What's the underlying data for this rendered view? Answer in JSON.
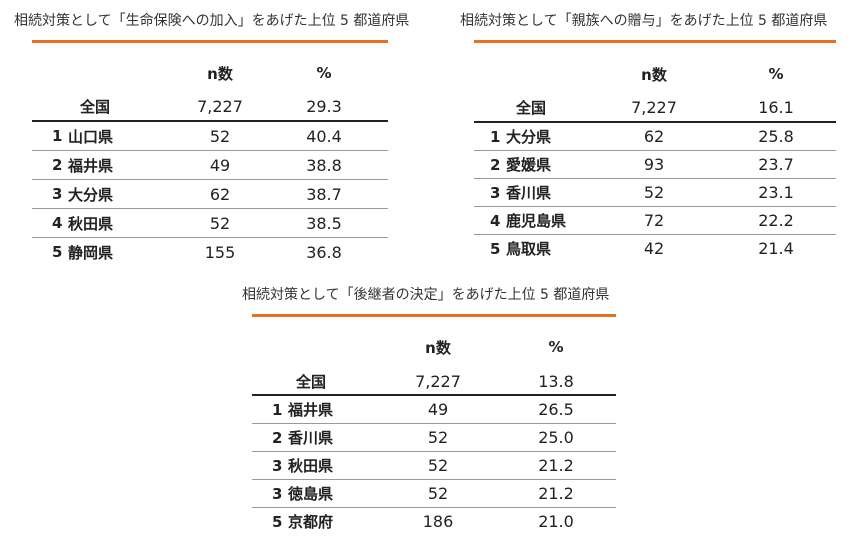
{
  "panels": [
    {
      "title": "相続対策として「生命保険への加入」をあげた上位 5 都道府県",
      "col_headers": [
        "n数",
        "%"
      ],
      "total": {
        "label": "全国",
        "n": "7,227",
        "pct": "29.3"
      },
      "rows": [
        {
          "rank": "1",
          "name": "山口県",
          "n": "52",
          "pct": "40.4"
        },
        {
          "rank": "2",
          "name": "福井県",
          "n": "49",
          "pct": "38.8"
        },
        {
          "rank": "3",
          "name": "大分県",
          "n": "62",
          "pct": "38.7"
        },
        {
          "rank": "4",
          "name": "秋田県",
          "n": "52",
          "pct": "38.5"
        },
        {
          "rank": "5",
          "name": "静岡県",
          "n": "155",
          "pct": "36.8"
        }
      ]
    },
    {
      "title": "相続対策として「親族への贈与」をあげた上位 5 都道府県",
      "col_headers": [
        "n数",
        "%"
      ],
      "total": {
        "label": "全国",
        "n": "7,227",
        "pct": "16.1"
      },
      "rows": [
        {
          "rank": "1",
          "name": "大分県",
          "n": "62",
          "pct": "25.8"
        },
        {
          "rank": "2",
          "name": "愛媛県",
          "n": "93",
          "pct": "23.7"
        },
        {
          "rank": "3",
          "name": "香川県",
          "n": "52",
          "pct": "23.1"
        },
        {
          "rank": "4",
          "name": "鹿児島県",
          "n": "72",
          "pct": "22.2"
        },
        {
          "rank": "5",
          "name": "鳥取県",
          "n": "42",
          "pct": "21.4"
        }
      ]
    },
    {
      "title": "相続対策として「後継者の決定」をあげた上位 5 都道府県",
      "col_headers": [
        "n数",
        "%"
      ],
      "total": {
        "label": "全国",
        "n": "7,227",
        "pct": "13.8"
      },
      "rows": [
        {
          "rank": "1",
          "name": "福井県",
          "n": "49",
          "pct": "26.5"
        },
        {
          "rank": "2",
          "name": "香川県",
          "n": "52",
          "pct": "25.0"
        },
        {
          "rank": "3",
          "name": "秋田県",
          "n": "52",
          "pct": "21.2"
        },
        {
          "rank": "3",
          "name": "徳島県",
          "n": "52",
          "pct": "21.2"
        },
        {
          "rank": "5",
          "name": "京都府",
          "n": "186",
          "pct": "21.0"
        }
      ]
    }
  ],
  "accent_color": "#e8701f"
}
